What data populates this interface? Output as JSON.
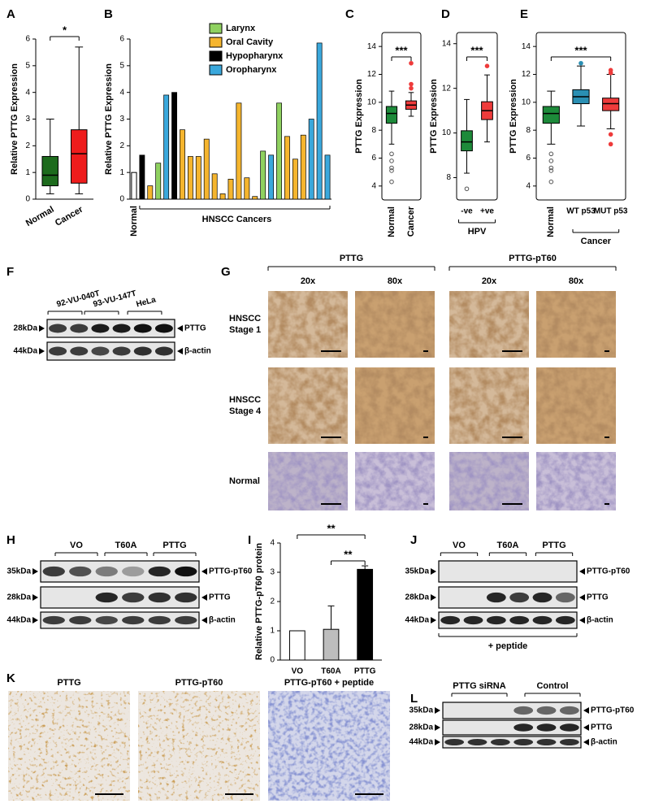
{
  "panel_labels": [
    "A",
    "B",
    "C",
    "D",
    "E",
    "F",
    "G",
    "H",
    "I",
    "J",
    "K",
    "L"
  ],
  "chart_data": [
    {
      "type": "box",
      "ylabel": "Relative PTTG Expression",
      "categories": [
        "Normal",
        "Cancer"
      ],
      "ylim": [
        0,
        6
      ],
      "yticks": [
        0,
        1,
        2,
        3,
        4,
        5,
        6
      ],
      "annotation": "*",
      "frame": false,
      "boxes": [
        {
          "color": "#1d6b1d",
          "whisker_low": 0.2,
          "q1": 0.5,
          "median": 0.9,
          "q3": 1.6,
          "whisker_high": 3.0,
          "outliers": [],
          "outlier_filled": false
        },
        {
          "color": "#ee1c1c",
          "whisker_low": 0.2,
          "q1": 0.6,
          "median": 1.7,
          "q3": 2.6,
          "whisker_high": 5.7,
          "outliers": [],
          "outlier_filled": true
        }
      ]
    },
    {
      "type": "bar",
      "ylabel": "Relative PTTG Expression",
      "x_label": "HNSCC Cancers",
      "ylim": [
        0,
        6
      ],
      "yticks": [
        0,
        1,
        2,
        3,
        4,
        5,
        6
      ],
      "categories": [
        "Normal",
        null,
        null,
        null,
        null,
        null,
        null,
        null,
        null,
        null,
        null,
        null,
        null,
        null,
        null,
        null,
        null,
        null,
        null,
        null,
        null,
        null,
        null,
        null,
        null
      ],
      "normal_value": 1.0,
      "normal_color": "#ffffff",
      "series": [
        {
          "name": "Larynx",
          "color": "#8fd160",
          "values": [
            null,
            null,
            null,
            1.35,
            null,
            null,
            null,
            null,
            null,
            null,
            null,
            null,
            null,
            null,
            null,
            null,
            1.8,
            null,
            3.6,
            null,
            null,
            null,
            null,
            null,
            null
          ]
        },
        {
          "name": "Oral Cavity",
          "color": "#f5b52e",
          "values": [
            null,
            null,
            0.5,
            null,
            null,
            null,
            2.6,
            1.6,
            1.6,
            2.25,
            0.95,
            0.2,
            0.75,
            3.6,
            0.8,
            0.1,
            null,
            null,
            null,
            2.35,
            1.5,
            2.4,
            null,
            null,
            null
          ]
        },
        {
          "name": "Hypopharynx",
          "color": "#000000",
          "values": [
            null,
            1.65,
            null,
            null,
            null,
            4.0,
            null,
            null,
            null,
            null,
            null,
            null,
            null,
            null,
            null,
            null,
            null,
            null,
            null,
            null,
            null,
            null,
            null,
            null,
            null
          ]
        },
        {
          "name": "Oropharynx",
          "color": "#3aa8dc",
          "values": [
            null,
            null,
            null,
            null,
            3.9,
            null,
            null,
            null,
            null,
            null,
            null,
            null,
            null,
            null,
            null,
            null,
            null,
            1.65,
            null,
            null,
            null,
            null,
            3.0,
            5.85,
            1.65
          ]
        }
      ]
    },
    {
      "type": "box",
      "ylabel": "PTTG Expression",
      "categories": [
        "Normal",
        "Cancer"
      ],
      "ylim": [
        3,
        15
      ],
      "yticks": [
        4,
        6,
        8,
        10,
        12,
        14
      ],
      "annotation": "***",
      "frame": true,
      "boxes": [
        {
          "color": "#1d8a3a",
          "whisker_low": 7.0,
          "q1": 8.5,
          "median": 9.2,
          "q3": 9.7,
          "whisker_high": 10.8,
          "outliers": [
            6.3,
            5.8,
            5.3,
            5.1,
            4.3
          ],
          "outlier_filled": false
        },
        {
          "color": "#ee3b3b",
          "whisker_low": 9.0,
          "q1": 9.5,
          "median": 9.8,
          "q3": 10.1,
          "whisker_high": 10.7,
          "outliers": [
            11.0,
            11.3,
            12.8
          ],
          "outlier_filled": true
        }
      ]
    },
    {
      "type": "box",
      "ylabel": "PTTG Expression",
      "categories": [
        "-ve",
        "+ve"
      ],
      "x_label": "HPV",
      "ylim": [
        7,
        14.5
      ],
      "yticks": [
        8,
        10,
        12,
        14
      ],
      "annotation": "***",
      "frame": true,
      "boxes": [
        {
          "color": "#1d8a3a",
          "whisker_low": 8.2,
          "q1": 9.2,
          "median": 9.6,
          "q3": 10.1,
          "whisker_high": 11.5,
          "outliers": [
            7.5
          ],
          "outlier_filled": false
        },
        {
          "color": "#ee3b3b",
          "whisker_low": 9.6,
          "q1": 10.6,
          "median": 11.0,
          "q3": 11.4,
          "whisker_high": 12.6,
          "outliers": [
            13.0
          ],
          "outlier_filled": true
        }
      ]
    },
    {
      "type": "box",
      "ylabel": "PTTG Expression",
      "categories": [
        "Normal",
        "WT p53",
        "MUT p53"
      ],
      "x_label": "Cancer",
      "ylim": [
        3,
        15
      ],
      "yticks": [
        4,
        6,
        8,
        10,
        12,
        14
      ],
      "annotation": "***",
      "frame": true,
      "boxes": [
        {
          "color": "#1d8a3a",
          "whisker_low": 7.0,
          "q1": 8.5,
          "median": 9.2,
          "q3": 9.7,
          "whisker_high": 10.8,
          "outliers": [
            6.3,
            5.8,
            5.3,
            5.1,
            4.3
          ],
          "outlier_filled": false
        },
        {
          "color": "#2a8fb3",
          "whisker_low": 8.3,
          "q1": 9.9,
          "median": 10.4,
          "q3": 10.9,
          "whisker_high": 12.6,
          "outliers": [
            12.8
          ],
          "outlier_filled": true
        },
        {
          "color": "#ee3b3b",
          "whisker_low": 8.1,
          "q1": 9.4,
          "median": 9.9,
          "q3": 10.3,
          "whisker_high": 12.0,
          "outliers": [
            12.1,
            12.3,
            7.7,
            7.0
          ],
          "outlier_filled": true
        }
      ]
    },
    {
      "type": "bar",
      "ylabel": "Relative PTTG-pT60 protein",
      "categories": [
        "VO",
        "T60A",
        "PTTG"
      ],
      "values": [
        1.0,
        1.05,
        3.1
      ],
      "errors": [
        null,
        0.8,
        0.12
      ],
      "colors": [
        "#ffffff",
        "#bdbdbd",
        "#000000"
      ],
      "ylim": [
        0,
        4
      ],
      "yticks": [
        0,
        1,
        2,
        3,
        4
      ],
      "annotations": [
        "**",
        "**"
      ]
    }
  ],
  "blots": [
    {
      "groups": [
        "92-VU-040T",
        "93-VU-147T",
        "HeLa"
      ],
      "rows": [
        {
          "size": "28kDa",
          "protein": "PTTG"
        },
        {
          "size": "44kDa",
          "protein": "β-actin"
        }
      ]
    },
    {
      "groups": [
        "VO",
        "T60A",
        "PTTG"
      ],
      "rows": [
        {
          "size": "35kDa",
          "protein": "PTTG-pT60"
        },
        {
          "size": "28kDa",
          "protein": "PTTG"
        },
        {
          "size": "44kDa",
          "protein": "β-actin"
        }
      ]
    },
    {
      "groups": [
        "VO",
        "T60A",
        "PTTG"
      ],
      "rows": [
        {
          "size": "35kDa",
          "protein": "PTTG-pT60"
        },
        {
          "size": "28kDa",
          "protein": "PTTG"
        },
        {
          "size": "44kDa",
          "protein": "β-actin"
        }
      ],
      "note": "+ peptide"
    },
    {
      "groups": [
        "PTTG siRNA",
        "Control"
      ],
      "rows": [
        {
          "size": "35kDa",
          "protein": "PTTG-pT60"
        },
        {
          "size": "28kDa",
          "protein": "PTTG"
        },
        {
          "size": "44kDa",
          "protein": "β-actin"
        }
      ]
    }
  ],
  "histology": [
    {
      "columns": [
        "PTTG",
        "PTTG-pT60"
      ],
      "magnifications": [
        "20x",
        "80x"
      ],
      "rows": [
        [
          "HNSCC",
          "Stage 1"
        ],
        [
          "HNSCC",
          "Stage 4"
        ],
        [
          "Normal"
        ]
      ]
    },
    {
      "columns": [
        "PTTG",
        "PTTG-pT60",
        "PTTG-pT60 + peptide"
      ]
    }
  ]
}
